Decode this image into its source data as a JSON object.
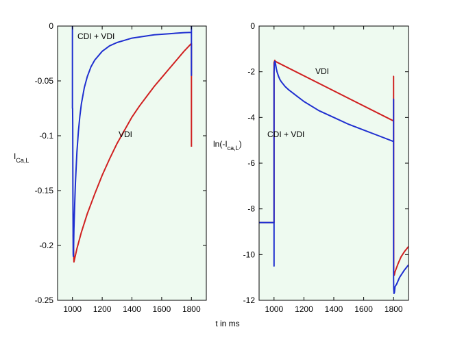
{
  "figure": {
    "xlabel": "t in ms",
    "background_color": "#eefaf0",
    "colors": {
      "cdi_vdi": "#1f2fd0",
      "vdi": "#d02020"
    }
  },
  "chart_data": [
    {
      "type": "line",
      "panel": "left",
      "ylabel_main": "I",
      "ylabel_sub": "Ca,L",
      "xlabel": "t in ms",
      "xlim": [
        900,
        1900
      ],
      "ylim": [
        -0.25,
        0
      ],
      "xticks": [
        1000,
        1200,
        1400,
        1600,
        1800
      ],
      "yticks": [
        0,
        -0.05,
        -0.1,
        -0.15,
        -0.2,
        -0.25
      ],
      "ytick_labels": [
        "0",
        "-0.05",
        "-0.1",
        "-0.15",
        "-0.2",
        "-0.25"
      ],
      "annotations": [
        {
          "text": "CDI + VDI",
          "x": 1010,
          "y": -0.012
        },
        {
          "text": "VDI",
          "x": 1310,
          "y": -0.1
        }
      ],
      "series": [
        {
          "name": "VDI",
          "color": "#d02020",
          "x": [
            1005,
            1010,
            1030,
            1060,
            1100,
            1150,
            1200,
            1250,
            1300,
            1350,
            1400,
            1450,
            1500,
            1550,
            1600,
            1650,
            1700,
            1750,
            1799,
            1800,
            1800
          ],
          "y": [
            -0.19,
            -0.215,
            -0.203,
            -0.188,
            -0.171,
            -0.153,
            -0.136,
            -0.121,
            -0.107,
            -0.095,
            -0.083,
            -0.073,
            -0.064,
            -0.055,
            -0.047,
            -0.039,
            -0.031,
            -0.023,
            -0.016,
            -0.016,
            -0.11
          ]
        },
        {
          "name": "CDI + VDI",
          "color": "#1f2fd0",
          "x": [
            1000,
            1000,
            1001,
            1002,
            1003,
            1005,
            1006,
            1008,
            1010,
            1015,
            1020,
            1030,
            1040,
            1050,
            1060,
            1080,
            1100,
            1125,
            1150,
            1200,
            1250,
            1300,
            1350,
            1400,
            1450,
            1500,
            1550,
            1600,
            1650,
            1700,
            1750,
            1799,
            1800,
            1800,
            1800
          ],
          "y": [
            0,
            -0.075,
            -0.075,
            -0.09,
            -0.15,
            -0.208,
            -0.21,
            -0.2,
            -0.185,
            -0.163,
            -0.143,
            -0.115,
            -0.096,
            -0.082,
            -0.071,
            -0.056,
            -0.046,
            -0.037,
            -0.031,
            -0.023,
            -0.018,
            -0.015,
            -0.013,
            -0.011,
            -0.01,
            -0.009,
            -0.008,
            -0.0075,
            -0.007,
            -0.0065,
            -0.006,
            -0.0058,
            -0.0058,
            -0.045,
            0
          ]
        }
      ]
    },
    {
      "type": "line",
      "panel": "right",
      "ylabel_main": "ln(-I",
      "ylabel_sub": "ca,L",
      "ylabel_end": ")",
      "xlabel": "t in ms",
      "xlim": [
        900,
        1900
      ],
      "ylim": [
        -12,
        0
      ],
      "xticks": [
        1000,
        1200,
        1400,
        1600,
        1800
      ],
      "yticks": [
        0,
        -2,
        -4,
        -6,
        -8,
        -10,
        -12
      ],
      "ytick_labels": [
        "0",
        "-2",
        "-4",
        "-6",
        "-8",
        "-10",
        "-12"
      ],
      "annotations": [
        {
          "text": "VDI",
          "x": 1380,
          "y": -2.0
        },
        {
          "text": "CDI + VDI",
          "x": 1090,
          "y": -4.8
        }
      ],
      "series": [
        {
          "name": "VDI",
          "color": "#d02020",
          "x": [
            900,
            1000,
            1000,
            1005,
            1010,
            1799,
            1800,
            1800,
            1801,
            1805,
            1810,
            1830,
            1850,
            1875,
            1900
          ],
          "y": [
            -8.6,
            -8.6,
            -1.6,
            -1.5,
            -1.55,
            -4.15,
            -4.15,
            -2.2,
            -10.8,
            -10.9,
            -10.75,
            -10.4,
            -10.1,
            -9.85,
            -9.65
          ]
        },
        {
          "name": "CDI + VDI",
          "color": "#1f2fd0",
          "x": [
            900,
            1000,
            1000,
            1000,
            1001,
            1002,
            1003,
            1005,
            1007,
            1010,
            1015,
            1020,
            1030,
            1040,
            1050,
            1075,
            1100,
            1150,
            1200,
            1300,
            1400,
            1500,
            1600,
            1700,
            1799,
            1800,
            1800,
            1800,
            1801,
            1803,
            1806,
            1810,
            1820,
            1840,
            1870,
            1900
          ],
          "y": [
            -8.6,
            -8.6,
            -10.5,
            -2.0,
            -1.9,
            -1.75,
            -1.6,
            -1.55,
            -1.58,
            -1.65,
            -1.85,
            -2.0,
            -2.2,
            -2.35,
            -2.45,
            -2.65,
            -2.8,
            -3.05,
            -3.3,
            -3.7,
            -4.0,
            -4.3,
            -4.55,
            -4.8,
            -5.05,
            -5.05,
            -3.2,
            -11.0,
            -11.5,
            -11.7,
            -11.65,
            -11.4,
            -11.3,
            -11.0,
            -10.7,
            -10.45
          ]
        }
      ]
    }
  ]
}
